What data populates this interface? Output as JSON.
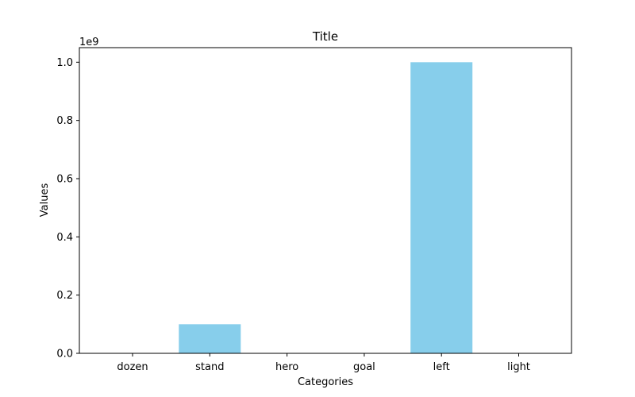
{
  "chart_data": {
    "type": "bar",
    "title": "Title",
    "xlabel": "Categories",
    "ylabel": "Values",
    "scale_multiplier_label": "1e9",
    "categories": [
      "dozen",
      "stand",
      "hero",
      "goal",
      "left",
      "light"
    ],
    "values": [
      0,
      100000000,
      0,
      0,
      1000000000,
      0
    ],
    "ylim": [
      0,
      1050000000
    ],
    "yticks": [
      0,
      200000000,
      400000000,
      600000000,
      800000000,
      1000000000
    ],
    "ytick_labels": [
      "0.0",
      "0.2",
      "0.4",
      "0.6",
      "0.8",
      "1.0"
    ],
    "bar_color": "#87ceeb",
    "grid": false,
    "legend": "none"
  }
}
